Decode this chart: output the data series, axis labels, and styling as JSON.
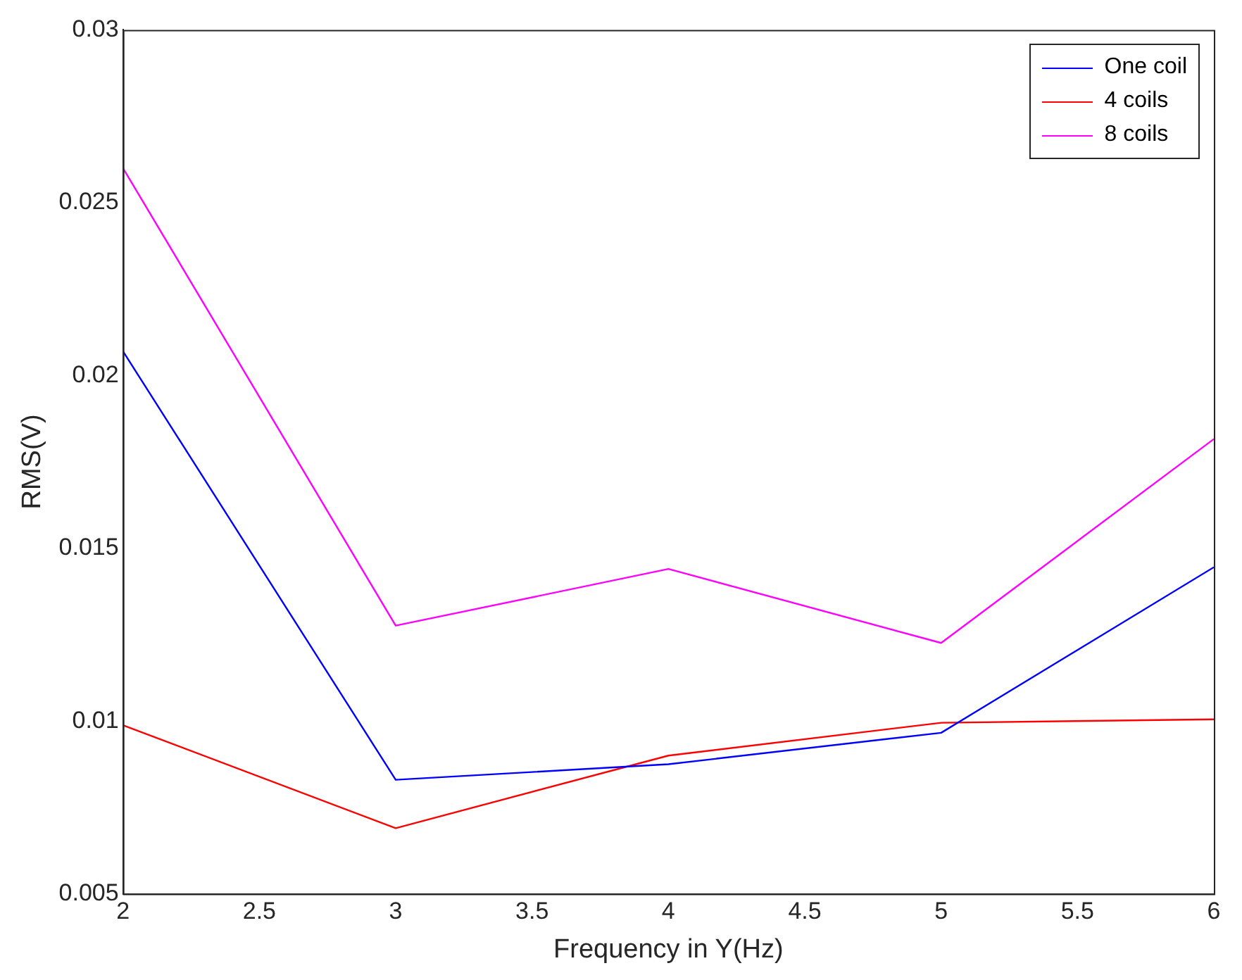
{
  "chart_data": {
    "type": "line",
    "xlabel": "Frequency in Y(Hz)",
    "ylabel": "RMS(V)",
    "x": [
      2,
      3,
      4,
      5,
      6
    ],
    "series": [
      {
        "name": "One coil",
        "color": "#0000ff",
        "values": [
          0.0207,
          0.0083,
          0.00875,
          0.00966,
          0.01445
        ]
      },
      {
        "name": "4 coils",
        "color": "#ff0000",
        "values": [
          0.00988,
          0.0069,
          0.009,
          0.00995,
          0.01005
        ]
      },
      {
        "name": "8 coils",
        "color": "#ff00ff",
        "values": [
          0.026,
          0.01276,
          0.0144,
          0.01226,
          0.01816
        ]
      }
    ],
    "xlim": [
      2,
      6
    ],
    "xticks": [
      2,
      2.5,
      3,
      3.5,
      4,
      4.5,
      5,
      5.5,
      6
    ],
    "ylim": [
      0.005,
      0.03
    ],
    "yticks": [
      0.005,
      0.01,
      0.015,
      0.02,
      0.025,
      0.03
    ],
    "grid": false,
    "legend": "top right",
    "marker": "none",
    "line_style": "solid"
  }
}
